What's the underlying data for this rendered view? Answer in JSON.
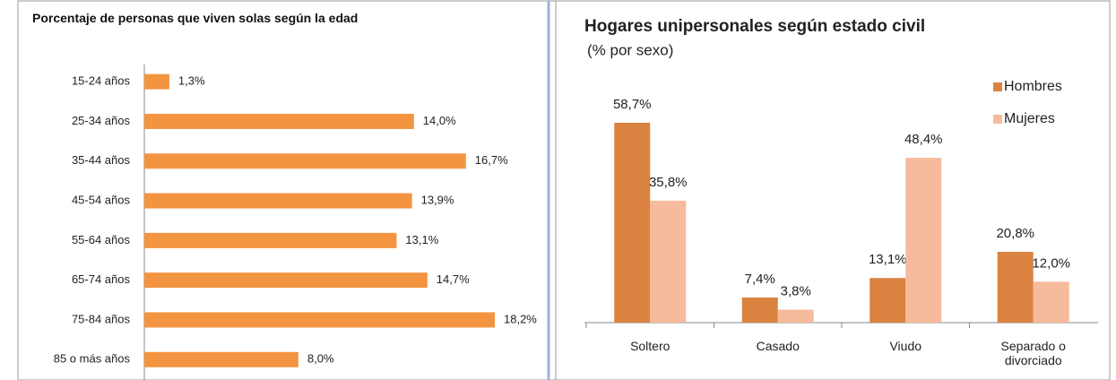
{
  "chart_data": [
    {
      "type": "hbar",
      "title": "Porcentaje de personas que viven solas según la edad",
      "categories": [
        "15-24 años",
        "25-34 años",
        "35-44 años",
        "45-54 años",
        "55-64 años",
        "65-74 años",
        "75-84 años",
        "85 o más años"
      ],
      "values": [
        1.3,
        14.0,
        16.7,
        13.9,
        13.1,
        14.7,
        18.2,
        8.0
      ],
      "value_labels": [
        "1,3%",
        "14,0%",
        "16,7%",
        "13,9%",
        "13,1%",
        "14,7%",
        "18,2%",
        "8,0%"
      ],
      "color": "#f39440"
    },
    {
      "type": "bar",
      "title": "Hogares unipersonales según estado civil",
      "subtitle": "(% por sexo)",
      "categories": [
        "Soltero",
        "Casado",
        "Viudo",
        "Separado o divorciado"
      ],
      "series": [
        {
          "name": "Hombres",
          "color": "#da8340",
          "values": [
            58.7,
            7.4,
            13.1,
            20.8
          ],
          "value_labels": [
            "58,7%",
            "7,4%",
            "13,1%",
            "20,8%"
          ]
        },
        {
          "name": "Mujeres",
          "color": "#f6bb9c",
          "values": [
            35.8,
            3.8,
            48.4,
            12.0
          ],
          "value_labels": [
            "35,8%",
            "3,8%",
            "48,4%",
            "12,0%"
          ]
        }
      ],
      "legend": "top-right"
    }
  ]
}
